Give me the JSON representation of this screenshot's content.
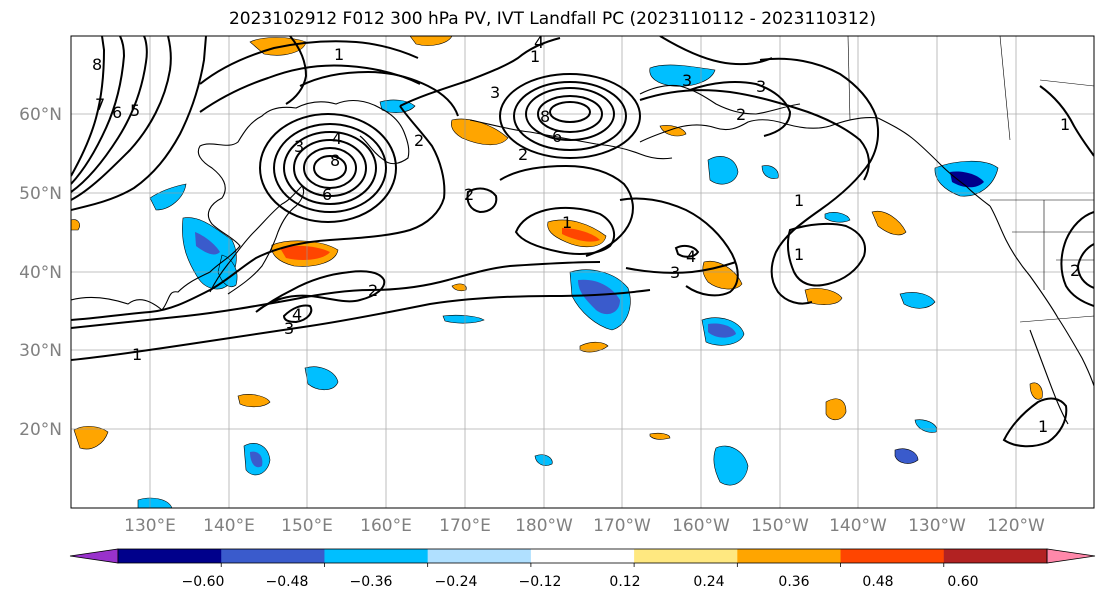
{
  "title": "2023102912 F012 300 hPa PV, IVT Landfall PC (2023110112 - 2023110312)",
  "map": {
    "lat_labels": [
      "60°N",
      "50°N",
      "40°N",
      "30°N",
      "20°N"
    ],
    "lon_labels": [
      "130°E",
      "140°E",
      "150°E",
      "160°E",
      "170°E",
      "180°W",
      "170°W",
      "160°W",
      "150°W",
      "140°W",
      "130°W",
      "120°W"
    ],
    "contour_labels": [
      "8",
      "7",
      "6",
      "5",
      "4",
      "3",
      "2",
      "1",
      "4",
      "3",
      "8",
      "6",
      "8",
      "6",
      "3",
      "2",
      "1",
      "1",
      "2",
      "3",
      "4",
      "2",
      "3",
      "4",
      "3",
      "2",
      "1",
      "1",
      "2",
      "1",
      "1",
      "1"
    ]
  },
  "colorbar": {
    "tick_labels": [
      "−0.60",
      "−0.48",
      "−0.36",
      "−0.24",
      "−0.12",
      "0.12",
      "0.24",
      "0.36",
      "0.48",
      "0.60"
    ],
    "colors": [
      "#9932cc",
      "#00008b",
      "#3a5bcc",
      "#00bfff",
      "#b0e0ff",
      "#ffffff",
      "#ffe880",
      "#ffa500",
      "#ff4500",
      "#b22222",
      "#ff88aa"
    ]
  }
}
